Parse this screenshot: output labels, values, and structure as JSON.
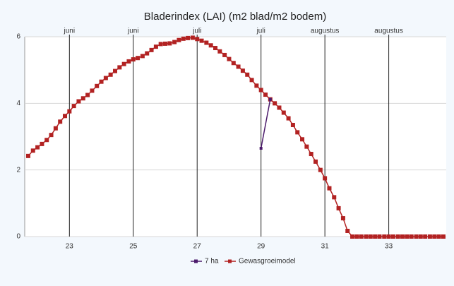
{
  "chart_data": {
    "type": "line",
    "title": "Bladerindex (LAI) (m2 blad/m2 bodem)",
    "xlim": [
      21.6,
      34.8
    ],
    "ylim": [
      0,
      6
    ],
    "xticks": [
      23,
      25,
      27,
      29,
      31,
      33
    ],
    "x2ticks": [
      {
        "value": 23,
        "label": "juni"
      },
      {
        "value": 25,
        "label": "juni"
      },
      {
        "value": 27,
        "label": "juli"
      },
      {
        "value": 29,
        "label": "juli"
      },
      {
        "value": 31,
        "label": "augustus"
      },
      {
        "value": 33,
        "label": "augustus"
      }
    ],
    "yticks": [
      0,
      2,
      4,
      6
    ],
    "grid": true,
    "legend": "bottom",
    "series": [
      {
        "name": "7 ha",
        "color": "#4b1a6b",
        "x": [
          29.0,
          29.29
        ],
        "values": [
          2.65,
          4.12
        ]
      },
      {
        "name": "Gewasgroeimodel",
        "color": "#b22222",
        "x": [
          21.71,
          21.86,
          22.0,
          22.14,
          22.29,
          22.43,
          22.57,
          22.71,
          22.86,
          23.0,
          23.14,
          23.29,
          23.43,
          23.57,
          23.71,
          23.86,
          24.0,
          24.14,
          24.29,
          24.43,
          24.57,
          24.71,
          24.86,
          25.0,
          25.14,
          25.29,
          25.43,
          25.57,
          25.71,
          25.86,
          26.0,
          26.14,
          26.29,
          26.43,
          26.57,
          26.71,
          26.86,
          27.0,
          27.14,
          27.29,
          27.43,
          27.57,
          27.71,
          27.86,
          28.0,
          28.14,
          28.29,
          28.43,
          28.57,
          28.71,
          28.86,
          29.0,
          29.14,
          29.29,
          29.43,
          29.57,
          29.71,
          29.86,
          30.0,
          30.14,
          30.29,
          30.43,
          30.57,
          30.71,
          30.86,
          31.0,
          31.14,
          31.29,
          31.43,
          31.57,
          31.71,
          31.86,
          32.0,
          32.14,
          32.29,
          32.43,
          32.57,
          32.71,
          32.86,
          33.0,
          33.14,
          33.29,
          33.43,
          33.57,
          33.71,
          33.86,
          34.0,
          34.14,
          34.29,
          34.43,
          34.57,
          34.71
        ],
        "values": [
          2.42,
          2.58,
          2.68,
          2.78,
          2.9,
          3.05,
          3.25,
          3.45,
          3.62,
          3.76,
          3.92,
          4.06,
          4.15,
          4.25,
          4.38,
          4.52,
          4.65,
          4.76,
          4.86,
          4.97,
          5.08,
          5.18,
          5.26,
          5.32,
          5.36,
          5.42,
          5.5,
          5.6,
          5.7,
          5.78,
          5.79,
          5.8,
          5.84,
          5.9,
          5.94,
          5.96,
          5.97,
          5.93,
          5.88,
          5.82,
          5.74,
          5.66,
          5.56,
          5.45,
          5.33,
          5.21,
          5.1,
          4.98,
          4.86,
          4.7,
          4.53,
          4.4,
          4.26,
          4.12,
          4.0,
          3.87,
          3.72,
          3.55,
          3.35,
          3.13,
          2.92,
          2.7,
          2.48,
          2.25,
          2.0,
          1.75,
          1.45,
          1.18,
          0.85,
          0.55,
          0.17,
          0,
          0,
          0,
          0,
          0,
          0,
          0,
          0,
          0,
          0,
          0,
          0,
          0,
          0,
          0,
          0,
          0,
          0,
          0,
          0,
          0
        ]
      }
    ]
  }
}
